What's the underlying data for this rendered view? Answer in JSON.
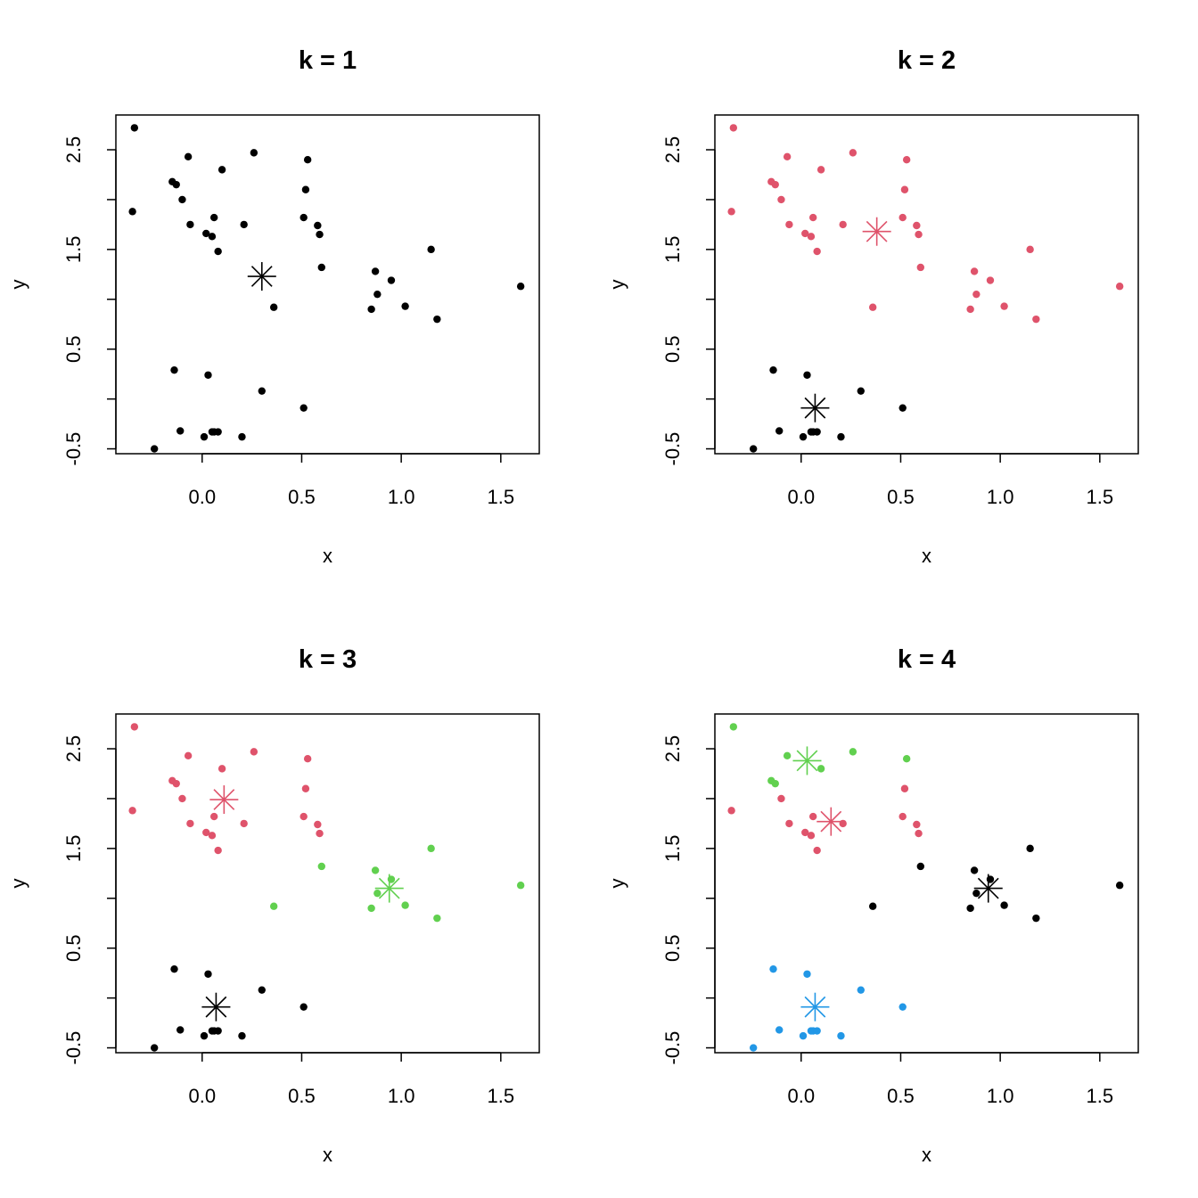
{
  "colors": {
    "palette": [
      "#000000",
      "#DF536B",
      "#61D04F",
      "#2297E6"
    ]
  },
  "points": {
    "x": [
      0.06,
      0.05,
      0.01,
      0.08,
      -0.11,
      0.03,
      -0.14,
      0.3,
      0.51,
      0.2,
      -0.24,
      0.51,
      0.58,
      0.59,
      0.53,
      0.21,
      0.26,
      0.1,
      0.06,
      0.05,
      0.02,
      0.08,
      -0.06,
      -0.1,
      -0.15,
      -0.13,
      -0.07,
      -0.35,
      -0.34,
      0.52,
      0.6,
      0.36,
      0.85,
      0.87,
      0.95,
      1.02,
      0.88,
      1.18,
      1.15,
      1.6
    ],
    "y": [
      -0.33,
      -0.33,
      -0.38,
      -0.33,
      -0.32,
      0.24,
      0.29,
      0.08,
      -0.09,
      -0.38,
      -0.5,
      1.82,
      1.74,
      1.65,
      2.4,
      1.75,
      2.47,
      2.3,
      1.82,
      1.63,
      1.66,
      1.48,
      1.75,
      2.0,
      2.18,
      2.15,
      2.43,
      1.88,
      2.72,
      2.1,
      1.32,
      0.92,
      0.9,
      1.28,
      1.19,
      0.93,
      1.05,
      0.8,
      1.5,
      1.13
    ]
  },
  "chart_data": [
    {
      "type": "scatter",
      "title": "k = 1",
      "xlabel": "x",
      "ylabel": "y",
      "xticks": [
        0.0,
        0.5,
        1.0,
        1.5
      ],
      "xtick_labels": [
        "0.0",
        "0.5",
        "1.0",
        "1.5"
      ],
      "yticks": [
        -0.5,
        0.0,
        0.5,
        1.0,
        1.5,
        2.0,
        2.5
      ],
      "ytick_labels": [
        "-0.5",
        "",
        "0.5",
        "",
        "1.5",
        "",
        "2.5"
      ],
      "xlim": [
        -0.4333,
        1.6933
      ],
      "ylim": [
        -0.5488,
        2.8488
      ],
      "assignments": [
        0,
        0,
        0,
        0,
        0,
        0,
        0,
        0,
        0,
        0,
        0,
        0,
        0,
        0,
        0,
        0,
        0,
        0,
        0,
        0,
        0,
        0,
        0,
        0,
        0,
        0,
        0,
        0,
        0,
        0,
        0,
        0,
        0,
        0,
        0,
        0,
        0,
        0,
        0,
        0
      ],
      "centers": [
        {
          "x": 0.3,
          "y": 1.23,
          "cluster": 0
        }
      ]
    },
    {
      "type": "scatter",
      "title": "k = 2",
      "xlabel": "x",
      "ylabel": "y",
      "xticks": [
        0.0,
        0.5,
        1.0,
        1.5
      ],
      "xtick_labels": [
        "0.0",
        "0.5",
        "1.0",
        "1.5"
      ],
      "yticks": [
        -0.5,
        0.0,
        0.5,
        1.0,
        1.5,
        2.0,
        2.5
      ],
      "ytick_labels": [
        "-0.5",
        "",
        "0.5",
        "",
        "1.5",
        "",
        "2.5"
      ],
      "xlim": [
        -0.4333,
        1.6933
      ],
      "ylim": [
        -0.5488,
        2.8488
      ],
      "assignments": [
        0,
        0,
        0,
        0,
        0,
        0,
        0,
        0,
        0,
        0,
        0,
        1,
        1,
        1,
        1,
        1,
        1,
        1,
        1,
        1,
        1,
        1,
        1,
        1,
        1,
        1,
        1,
        1,
        1,
        1,
        1,
        1,
        1,
        1,
        1,
        1,
        1,
        1,
        1,
        1
      ],
      "centers": [
        {
          "x": 0.07,
          "y": -0.09,
          "cluster": 0
        },
        {
          "x": 0.38,
          "y": 1.68,
          "cluster": 1
        }
      ]
    },
    {
      "type": "scatter",
      "title": "k = 3",
      "xlabel": "x",
      "ylabel": "y",
      "xticks": [
        0.0,
        0.5,
        1.0,
        1.5
      ],
      "xtick_labels": [
        "0.0",
        "0.5",
        "1.0",
        "1.5"
      ],
      "yticks": [
        -0.5,
        0.0,
        0.5,
        1.0,
        1.5,
        2.0,
        2.5
      ],
      "ytick_labels": [
        "-0.5",
        "",
        "0.5",
        "",
        "1.5",
        "",
        "2.5"
      ],
      "xlim": [
        -0.4333,
        1.6933
      ],
      "ylim": [
        -0.5488,
        2.8488
      ],
      "assignments": [
        0,
        0,
        0,
        0,
        0,
        0,
        0,
        0,
        0,
        0,
        0,
        1,
        1,
        1,
        1,
        1,
        1,
        1,
        1,
        1,
        1,
        1,
        1,
        1,
        1,
        1,
        1,
        1,
        1,
        1,
        2,
        2,
        2,
        2,
        2,
        2,
        2,
        2,
        2,
        2
      ],
      "centers": [
        {
          "x": 0.07,
          "y": -0.09,
          "cluster": 0
        },
        {
          "x": 0.11,
          "y": 1.99,
          "cluster": 1
        },
        {
          "x": 0.94,
          "y": 1.1,
          "cluster": 2
        }
      ]
    },
    {
      "type": "scatter",
      "title": "k = 4",
      "xlabel": "x",
      "ylabel": "y",
      "xticks": [
        0.0,
        0.5,
        1.0,
        1.5
      ],
      "xtick_labels": [
        "0.0",
        "0.5",
        "1.0",
        "1.5"
      ],
      "yticks": [
        -0.5,
        0.0,
        0.5,
        1.0,
        1.5,
        2.0,
        2.5
      ],
      "ytick_labels": [
        "-0.5",
        "",
        "0.5",
        "",
        "1.5",
        "",
        "2.5"
      ],
      "xlim": [
        -0.4333,
        1.6933
      ],
      "ylim": [
        -0.5488,
        2.8488
      ],
      "assignments": [
        3,
        3,
        3,
        3,
        3,
        3,
        3,
        3,
        3,
        3,
        3,
        1,
        1,
        1,
        2,
        1,
        2,
        2,
        1,
        1,
        1,
        1,
        1,
        1,
        2,
        2,
        2,
        1,
        2,
        1,
        0,
        0,
        0,
        0,
        0,
        0,
        0,
        0,
        0,
        0
      ],
      "centers": [
        {
          "x": 0.94,
          "y": 1.1,
          "cluster": 0
        },
        {
          "x": 0.15,
          "y": 1.77,
          "cluster": 1
        },
        {
          "x": 0.03,
          "y": 2.38,
          "cluster": 2
        },
        {
          "x": 0.07,
          "y": -0.09,
          "cluster": 3
        }
      ]
    }
  ]
}
